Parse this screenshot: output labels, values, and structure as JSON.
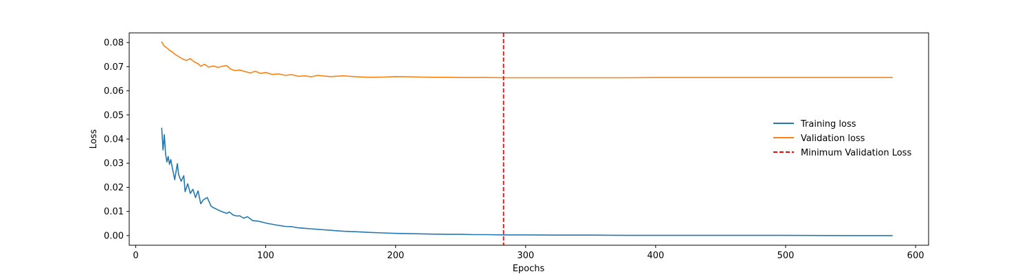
{
  "chart_data": {
    "type": "line",
    "title": "",
    "xlabel": "Epochs",
    "ylabel": "Loss",
    "xlim": [
      -5,
      610
    ],
    "ylim": [
      -0.004,
      0.084
    ],
    "xticks": [
      0,
      100,
      200,
      300,
      400,
      500,
      600
    ],
    "xtick_labels": [
      "0",
      "100",
      "200",
      "300",
      "400",
      "500",
      "600"
    ],
    "yticks": [
      0.0,
      0.01,
      0.02,
      0.03,
      0.04,
      0.05,
      0.06,
      0.07,
      0.08
    ],
    "ytick_labels": [
      "0.00",
      "0.01",
      "0.02",
      "0.03",
      "0.04",
      "0.05",
      "0.06",
      "0.07",
      "0.08"
    ],
    "grid": false,
    "legend_position": "center-right",
    "series": [
      {
        "name": "Training loss",
        "color": "#1f77b4",
        "style": "solid",
        "x": [
          20,
          21,
          22,
          23,
          24,
          25,
          26,
          27,
          28,
          30,
          32,
          33,
          35,
          37,
          38,
          40,
          42,
          44,
          46,
          48,
          50,
          52,
          55,
          58,
          60,
          62,
          65,
          68,
          70,
          72,
          75,
          78,
          80,
          83,
          86,
          90,
          94,
          98,
          100,
          105,
          110,
          115,
          120,
          125,
          130,
          135,
          140,
          145,
          150,
          155,
          160,
          170,
          180,
          190,
          200,
          210,
          220,
          230,
          240,
          250,
          260,
          270,
          283,
          300,
          320,
          350,
          380,
          400,
          450,
          500,
          550,
          582
        ],
        "y": [
          0.0445,
          0.0355,
          0.0418,
          0.0338,
          0.0305,
          0.0328,
          0.0295,
          0.0315,
          0.0285,
          0.0232,
          0.0298,
          0.0252,
          0.0225,
          0.0248,
          0.0182,
          0.0215,
          0.0175,
          0.0192,
          0.0158,
          0.0185,
          0.0132,
          0.0148,
          0.0158,
          0.0122,
          0.0115,
          0.011,
          0.0102,
          0.0096,
          0.0092,
          0.0098,
          0.0085,
          0.0081,
          0.0082,
          0.0072,
          0.0078,
          0.0062,
          0.006,
          0.0055,
          0.0052,
          0.0047,
          0.0042,
          0.0038,
          0.0037,
          0.0032,
          0.003,
          0.0028,
          0.0026,
          0.0024,
          0.0022,
          0.002,
          0.0018,
          0.0016,
          0.0013,
          0.0011,
          0.0009,
          0.0008,
          0.0007,
          0.0006,
          0.0005,
          0.0005,
          0.0004,
          0.0004,
          0.0003,
          0.0003,
          0.0002,
          0.0002,
          0.0001,
          0.0001,
          0.0001,
          0.0001,
          0.0,
          0.0
        ]
      },
      {
        "name": "Validation loss",
        "color": "#ff7f0e",
        "style": "solid",
        "x": [
          20,
          22,
          24,
          26,
          28,
          30,
          33,
          36,
          39,
          42,
          45,
          48,
          50,
          53,
          56,
          60,
          63,
          66,
          70,
          73,
          76,
          80,
          84,
          88,
          92,
          96,
          100,
          105,
          110,
          115,
          120,
          125,
          130,
          135,
          140,
          145,
          150,
          160,
          170,
          180,
          190,
          200,
          210,
          220,
          230,
          240,
          250,
          260,
          270,
          283,
          300,
          320,
          340,
          360,
          380,
          400,
          450,
          500,
          550,
          582
        ],
        "y": [
          0.0802,
          0.0785,
          0.0778,
          0.0768,
          0.0762,
          0.0752,
          0.0742,
          0.0732,
          0.0726,
          0.0733,
          0.072,
          0.0712,
          0.0702,
          0.071,
          0.0698,
          0.0703,
          0.0697,
          0.0701,
          0.0705,
          0.069,
          0.0684,
          0.0686,
          0.068,
          0.0674,
          0.0681,
          0.0672,
          0.0676,
          0.0668,
          0.067,
          0.0664,
          0.0667,
          0.066,
          0.0662,
          0.0658,
          0.0664,
          0.0661,
          0.0659,
          0.0662,
          0.0658,
          0.0656,
          0.0657,
          0.0659,
          0.0658,
          0.0657,
          0.0656,
          0.0656,
          0.0655,
          0.0655,
          0.0655,
          0.0654,
          0.0654,
          0.0654,
          0.0654,
          0.0654,
          0.0654,
          0.0655,
          0.0655,
          0.0655,
          0.0655,
          0.0655
        ]
      }
    ],
    "vlines": [
      {
        "name": "Minimum Validation Loss",
        "x": 283,
        "color": "#ff0000",
        "style": "dashed"
      }
    ]
  }
}
